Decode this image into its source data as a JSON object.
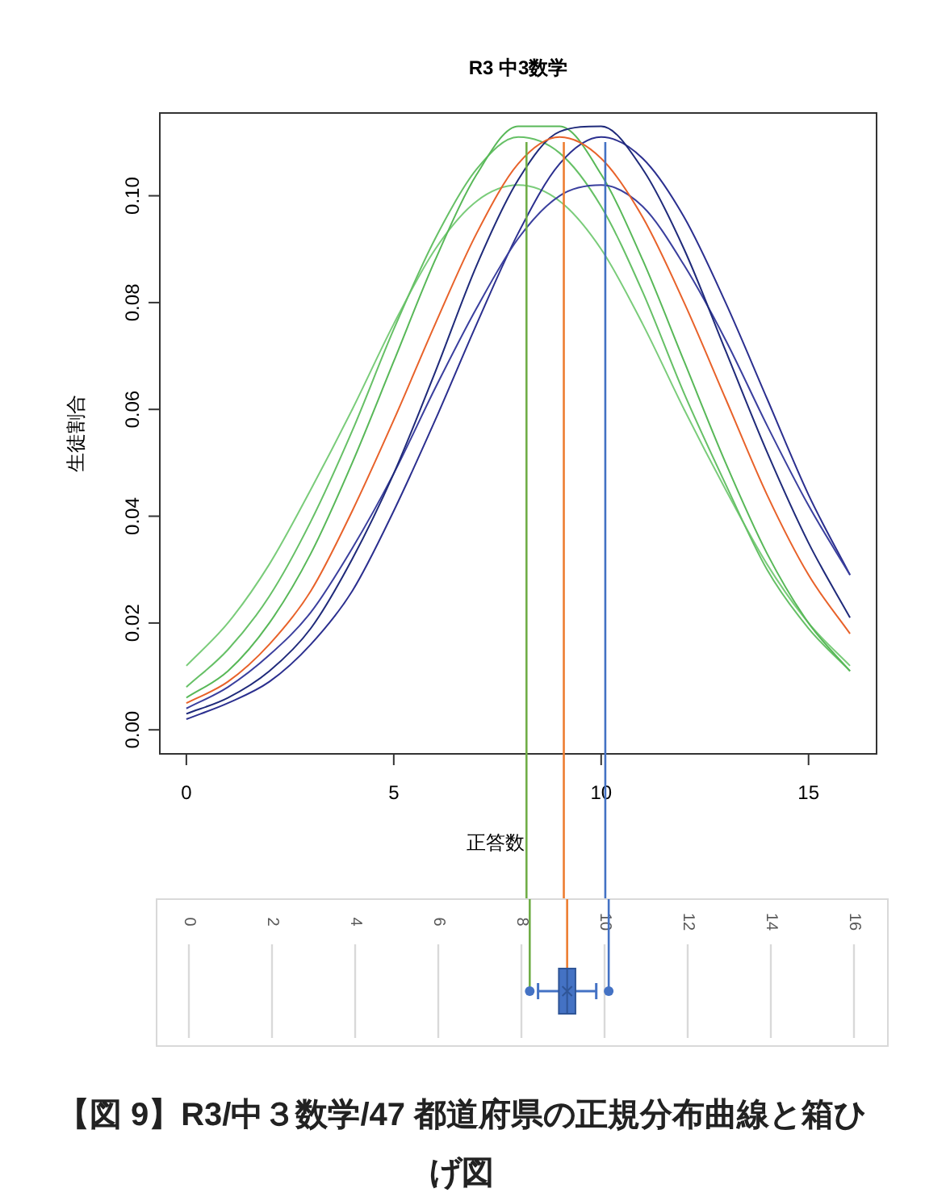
{
  "chart_data": [
    {
      "type": "line",
      "title": "R3 中3数学",
      "xlabel": "正答数",
      "ylabel": "生徒割合",
      "x": [
        0,
        1,
        2,
        3,
        4,
        5,
        6,
        7,
        8,
        9,
        10,
        11,
        12,
        13,
        14,
        15,
        16
      ],
      "series": [
        {
          "color": "#7acc7a",
          "values": [
            0.012,
            0.02,
            0.031,
            0.045,
            0.06,
            0.076,
            0.09,
            0.099,
            0.102,
            0.099,
            0.09,
            0.076,
            0.06,
            0.045,
            0.031,
            0.02,
            0.012
          ]
        },
        {
          "color": "#66c066",
          "values": [
            0.008,
            0.015,
            0.025,
            0.039,
            0.056,
            0.075,
            0.092,
            0.105,
            0.111,
            0.108,
            0.098,
            0.082,
            0.063,
            0.046,
            0.03,
            0.019,
            0.011
          ]
        },
        {
          "color": "#58b858",
          "values": [
            0.006,
            0.011,
            0.02,
            0.033,
            0.05,
            0.069,
            0.088,
            0.104,
            0.113,
            0.113,
            0.104,
            0.088,
            0.069,
            0.05,
            0.033,
            0.02,
            0.011
          ]
        },
        {
          "color": "#2b2f8f",
          "values": [
            0.002,
            0.005,
            0.009,
            0.016,
            0.026,
            0.041,
            0.058,
            0.076,
            0.093,
            0.106,
            0.111,
            0.107,
            0.096,
            0.08,
            0.062,
            0.044,
            0.029
          ]
        },
        {
          "color": "#3a3f9e",
          "values": [
            0.004,
            0.008,
            0.014,
            0.022,
            0.034,
            0.048,
            0.064,
            0.079,
            0.092,
            0.1,
            0.102,
            0.098,
            0.087,
            0.073,
            0.057,
            0.042,
            0.029
          ]
        },
        {
          "color": "#1f2a7a",
          "values": [
            0.003,
            0.006,
            0.011,
            0.019,
            0.032,
            0.048,
            0.067,
            0.087,
            0.103,
            0.112,
            0.113,
            0.105,
            0.09,
            0.071,
            0.052,
            0.035,
            0.021
          ]
        },
        {
          "color": "#e8622a",
          "values": [
            0.005,
            0.009,
            0.016,
            0.026,
            0.041,
            0.058,
            0.076,
            0.093,
            0.106,
            0.111,
            0.107,
            0.096,
            0.08,
            0.062,
            0.044,
            0.029,
            0.018
          ]
        }
      ],
      "xlim": [
        -0.64,
        16.64
      ],
      "ylim": [
        -0.0045,
        0.1155
      ],
      "xticks": [
        0,
        5,
        10,
        15
      ],
      "yticks": [
        {
          "value": 0,
          "label": "0.00"
        },
        {
          "value": 0.02,
          "label": "0.02"
        },
        {
          "value": 0.04,
          "label": "0.04"
        },
        {
          "value": 0.06,
          "label": "0.06"
        },
        {
          "value": 0.08,
          "label": "0.08"
        },
        {
          "value": 0.1,
          "label": "0.10"
        }
      ],
      "ref_lines": [
        {
          "axis": "x",
          "value": 8.2,
          "color": "#70ad47"
        },
        {
          "axis": "x",
          "value": 9.1,
          "color": "#ed7d31"
        },
        {
          "axis": "x",
          "value": 10.1,
          "color": "#4472c4"
        }
      ]
    },
    {
      "type": "box",
      "orientation": "horizontal",
      "categories": [
        null
      ],
      "boxes": [
        {
          "low": 8.4,
          "q1": 8.9,
          "median": 9.1,
          "q3": 9.3,
          "high": 9.8,
          "mean": 9.1,
          "outliers": [
            8.2,
            10.1
          ]
        }
      ],
      "color": "#4472c4",
      "xlim": [
        0,
        16
      ],
      "xticks": [
        0,
        2,
        4,
        6,
        8,
        10,
        12,
        14,
        16
      ],
      "grid": "x",
      "ref_lines": [
        {
          "axis": "x",
          "value": 8.2,
          "color": "#70ad47"
        },
        {
          "axis": "x",
          "value": 9.1,
          "color": "#ed7d31"
        },
        {
          "axis": "x",
          "value": 10.1,
          "color": "#4472c4"
        }
      ],
      "annotations": [
        "【図 9】R3/中３数学/47 都道府県の正規分布曲線と箱ひげ図"
      ]
    }
  ]
}
